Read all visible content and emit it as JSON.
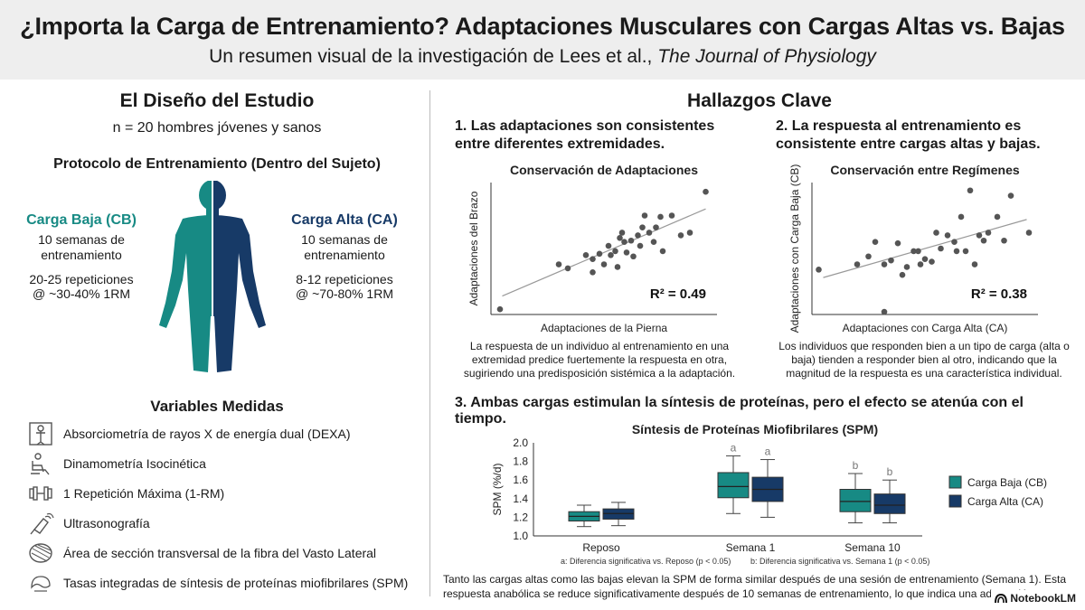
{
  "header": {
    "title": "¿Importa la Carga de Entrenamiento? Adaptaciones Musculares con Cargas Altas vs. Bajas",
    "subtitle_prefix": "Un resumen visual de la investigación de Lees et al., ",
    "subtitle_journal": "The Journal of Physiology"
  },
  "design": {
    "heading": "El Diseño del Estudio",
    "sample": "n = 20 hombres jóvenes y sanos",
    "protocol_title": "Protocolo de Entrenamiento (Dentro del Sujeto)",
    "low": {
      "label": "Carga Baja (CB)",
      "weeks": "10 semanas de entrenamiento",
      "reps": "20-25 repeticiones",
      "intensity": "@ ~30-40% 1RM",
      "color": "#178a84"
    },
    "high": {
      "label": "Carga Alta (CA)",
      "weeks": "10 semanas de entrenamiento",
      "reps": "8-12 repeticiones",
      "intensity": "@ ~70-80% 1RM",
      "color": "#173a67"
    }
  },
  "variables": {
    "heading": "Variables Medidas",
    "items": [
      {
        "icon": "dexa-scan-icon",
        "label": "Absorciometría de rayos X de energía dual (DEXA)"
      },
      {
        "icon": "dynamometer-chair-icon",
        "label": "Dinamometría Isocinética"
      },
      {
        "icon": "dumbbell-icon",
        "label": "1 Repetición Máxima (1-RM)"
      },
      {
        "icon": "ultrasound-probe-icon",
        "label": "Ultrasonografía"
      },
      {
        "icon": "muscle-fiber-icon",
        "label": "Área de sección transversal de la fibra del Vasto Lateral"
      },
      {
        "icon": "protein-synthesis-icon",
        "label": "Tasas integradas de síntesis de proteínas miofibrilares (SPM)"
      }
    ]
  },
  "findings": {
    "heading": "Hallazgos Clave",
    "f1_title_line1": "1. Las adaptaciones son consistentes",
    "f1_title_line2": "entre diferentes extremidades.",
    "f1_caption": "La respuesta de un individuo al entrenamiento en una extremidad predice fuertemente la respuesta en otra, sugiriendo una predisposición sistémica a la adaptación.",
    "f2_title_line1": "2. La respuesta al entrenamiento es",
    "f2_title_line2": "consistente entre cargas altas y bajas.",
    "f2_caption": "Los individuos que responden bien a un tipo de carga (alta o baja) tienden a responder bien al otro, indicando que la magnitud de la respuesta es una característica individual.",
    "f3_title": "3. Ambas cargas estimulan la síntesis de proteínas, pero el efecto se atenúa con el tiempo.",
    "f3_caption": "Tanto las cargas altas como las bajas elevan la SPM de forma similar después de una sesión de entrenamiento (Semana 1). Esta respuesta anabólica se reduce significativamente después de 10 semanas de entrenamiento, lo que indica una adaptación",
    "f3_note_a": "a: Diferencia significativa vs. Reposo (p < 0.05)",
    "f3_note_b": "b: Diferencia significativa vs. Semana 1 (p < 0.05)"
  },
  "chart_data": [
    {
      "type": "scatter",
      "title": "Conservación de Adaptaciones",
      "xlabel": "Adaptaciones de la Pierna",
      "ylabel": "Adaptaciones del Brazo",
      "annotation": "R² = 0.49",
      "xlim": [
        0,
        100
      ],
      "ylim": [
        0,
        100
      ],
      "trendline": [
        [
          5,
          14
        ],
        [
          95,
          80
        ]
      ],
      "points": [
        [
          4,
          4
        ],
        [
          30,
          38
        ],
        [
          34,
          35
        ],
        [
          42,
          45
        ],
        [
          45,
          32
        ],
        [
          45,
          42
        ],
        [
          48,
          46
        ],
        [
          50,
          38
        ],
        [
          52,
          52
        ],
        [
          53,
          45
        ],
        [
          55,
          48
        ],
        [
          56,
          36
        ],
        [
          57,
          58
        ],
        [
          58,
          62
        ],
        [
          59,
          55
        ],
        [
          60,
          47
        ],
        [
          62,
          56
        ],
        [
          63,
          44
        ],
        [
          65,
          60
        ],
        [
          66,
          52
        ],
        [
          67,
          66
        ],
        [
          68,
          75
        ],
        [
          70,
          62
        ],
        [
          72,
          55
        ],
        [
          73,
          66
        ],
        [
          75,
          74
        ],
        [
          76,
          48
        ],
        [
          80,
          75
        ],
        [
          84,
          60
        ],
        [
          88,
          62
        ],
        [
          95,
          93
        ]
      ]
    },
    {
      "type": "scatter",
      "title": "Conservación entre Regímenes",
      "xlabel": "Adaptaciones con Carga Alta (CA)",
      "ylabel": "Adaptaciones con Carga Baja (CB)",
      "annotation": "R² = 0.38",
      "xlim": [
        0,
        100
      ],
      "ylim": [
        0,
        100
      ],
      "trendline": [
        [
          5,
          28
        ],
        [
          95,
          72
        ]
      ],
      "points": [
        [
          3,
          34
        ],
        [
          20,
          38
        ],
        [
          25,
          44
        ],
        [
          28,
          55
        ],
        [
          32,
          38
        ],
        [
          35,
          41
        ],
        [
          38,
          54
        ],
        [
          40,
          30
        ],
        [
          42,
          36
        ],
        [
          45,
          48
        ],
        [
          47,
          48
        ],
        [
          48,
          38
        ],
        [
          50,
          42
        ],
        [
          53,
          40
        ],
        [
          55,
          62
        ],
        [
          57,
          50
        ],
        [
          60,
          60
        ],
        [
          63,
          55
        ],
        [
          64,
          48
        ],
        [
          66,
          74
        ],
        [
          68,
          48
        ],
        [
          70,
          94
        ],
        [
          72,
          38
        ],
        [
          74,
          60
        ],
        [
          76,
          56
        ],
        [
          78,
          62
        ],
        [
          82,
          74
        ],
        [
          85,
          56
        ],
        [
          88,
          90
        ],
        [
          96,
          62
        ],
        [
          32,
          2
        ]
      ]
    },
    {
      "type": "box",
      "title": "Síntesis de Proteínas Miofibrilares (SPM)",
      "ylabel": "SPM (%/d)",
      "ylim": [
        1.0,
        2.0
      ],
      "yticks": [
        "1.0",
        "1.2",
        "1.4",
        "1.6",
        "1.8",
        "2.0"
      ],
      "categories": [
        "Reposo",
        "Semana 1",
        "Semana 10"
      ],
      "letters": [
        "",
        "a",
        "b"
      ],
      "legend_position": "right",
      "series": [
        {
          "name": "Carga Baja (CB)",
          "color": "#178a84",
          "boxes": [
            {
              "min": 1.1,
              "q1": 1.16,
              "median": 1.21,
              "q3": 1.26,
              "max": 1.33
            },
            {
              "min": 1.24,
              "q1": 1.41,
              "median": 1.53,
              "q3": 1.68,
              "max": 1.86
            },
            {
              "min": 1.14,
              "q1": 1.26,
              "median": 1.37,
              "q3": 1.5,
              "max": 1.67
            }
          ]
        },
        {
          "name": "Carga Alta (CA)",
          "color": "#173a67",
          "boxes": [
            {
              "min": 1.11,
              "q1": 1.18,
              "median": 1.24,
              "q3": 1.29,
              "max": 1.36
            },
            {
              "min": 1.2,
              "q1": 1.37,
              "median": 1.5,
              "q3": 1.63,
              "max": 1.82
            },
            {
              "min": 1.14,
              "q1": 1.24,
              "median": 1.33,
              "q3": 1.45,
              "max": 1.6
            }
          ]
        }
      ]
    }
  ],
  "brand": {
    "name": "NotebookLM"
  }
}
